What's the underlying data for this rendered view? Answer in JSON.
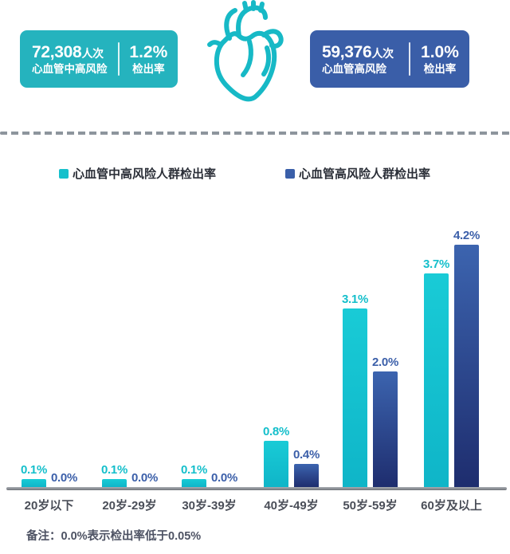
{
  "stats": {
    "left": {
      "count": "72,308",
      "count_unit": "人次",
      "label": "心血管中高风险",
      "rate": "1.2%",
      "rate_label": "检出率",
      "bg_color": "#25b3be"
    },
    "right": {
      "count": "59,376",
      "count_unit": "人次",
      "label": "心血管高风险",
      "rate": "1.0%",
      "rate_label": "检出率",
      "bg_color": "#3a5ea8"
    }
  },
  "icons": {
    "heart": "anatomical-heart-line-icon",
    "heart_color": "#17b9c6"
  },
  "legend": [
    {
      "label": "心血管中高风险人群检出率",
      "color": "#17c0cc"
    },
    {
      "label": "心血管高风险人群检出率",
      "color": "#3a5fa9"
    }
  ],
  "chart_data": {
    "type": "bar",
    "categories": [
      "20岁以下",
      "20岁-29岁",
      "30岁-39岁",
      "40岁-49岁",
      "50岁-59岁",
      "60岁及以上"
    ],
    "series": [
      {
        "name": "心血管中高风险人群检出率",
        "values": [
          0.1,
          0.1,
          0.1,
          0.8,
          3.1,
          3.7
        ],
        "labels": [
          "0.1%",
          "0.1%",
          "0.1%",
          "0.8%",
          "3.1%",
          "3.7%"
        ],
        "color_top": "#19cbd6",
        "color_bottom": "#0fb5c8",
        "label_color": "#14bfcb"
      },
      {
        "name": "心血管高风险人群检出率",
        "values": [
          0.0,
          0.0,
          0.0,
          0.4,
          2.0,
          4.2
        ],
        "labels": [
          "0.0%",
          "0.0%",
          "0.0%",
          "0.4%",
          "2.0%",
          "4.2%"
        ],
        "color_top": "#3c64af",
        "color_bottom": "#1e2d6e",
        "label_color": "#3b5fa9"
      }
    ],
    "ylim": [
      0,
      4.5
    ],
    "unit": "%",
    "grid": false,
    "legend_position": "top",
    "axis_color": "#8a8e95"
  },
  "footer": {
    "note": "备注：0.0%表示检出率低于0.05%"
  }
}
